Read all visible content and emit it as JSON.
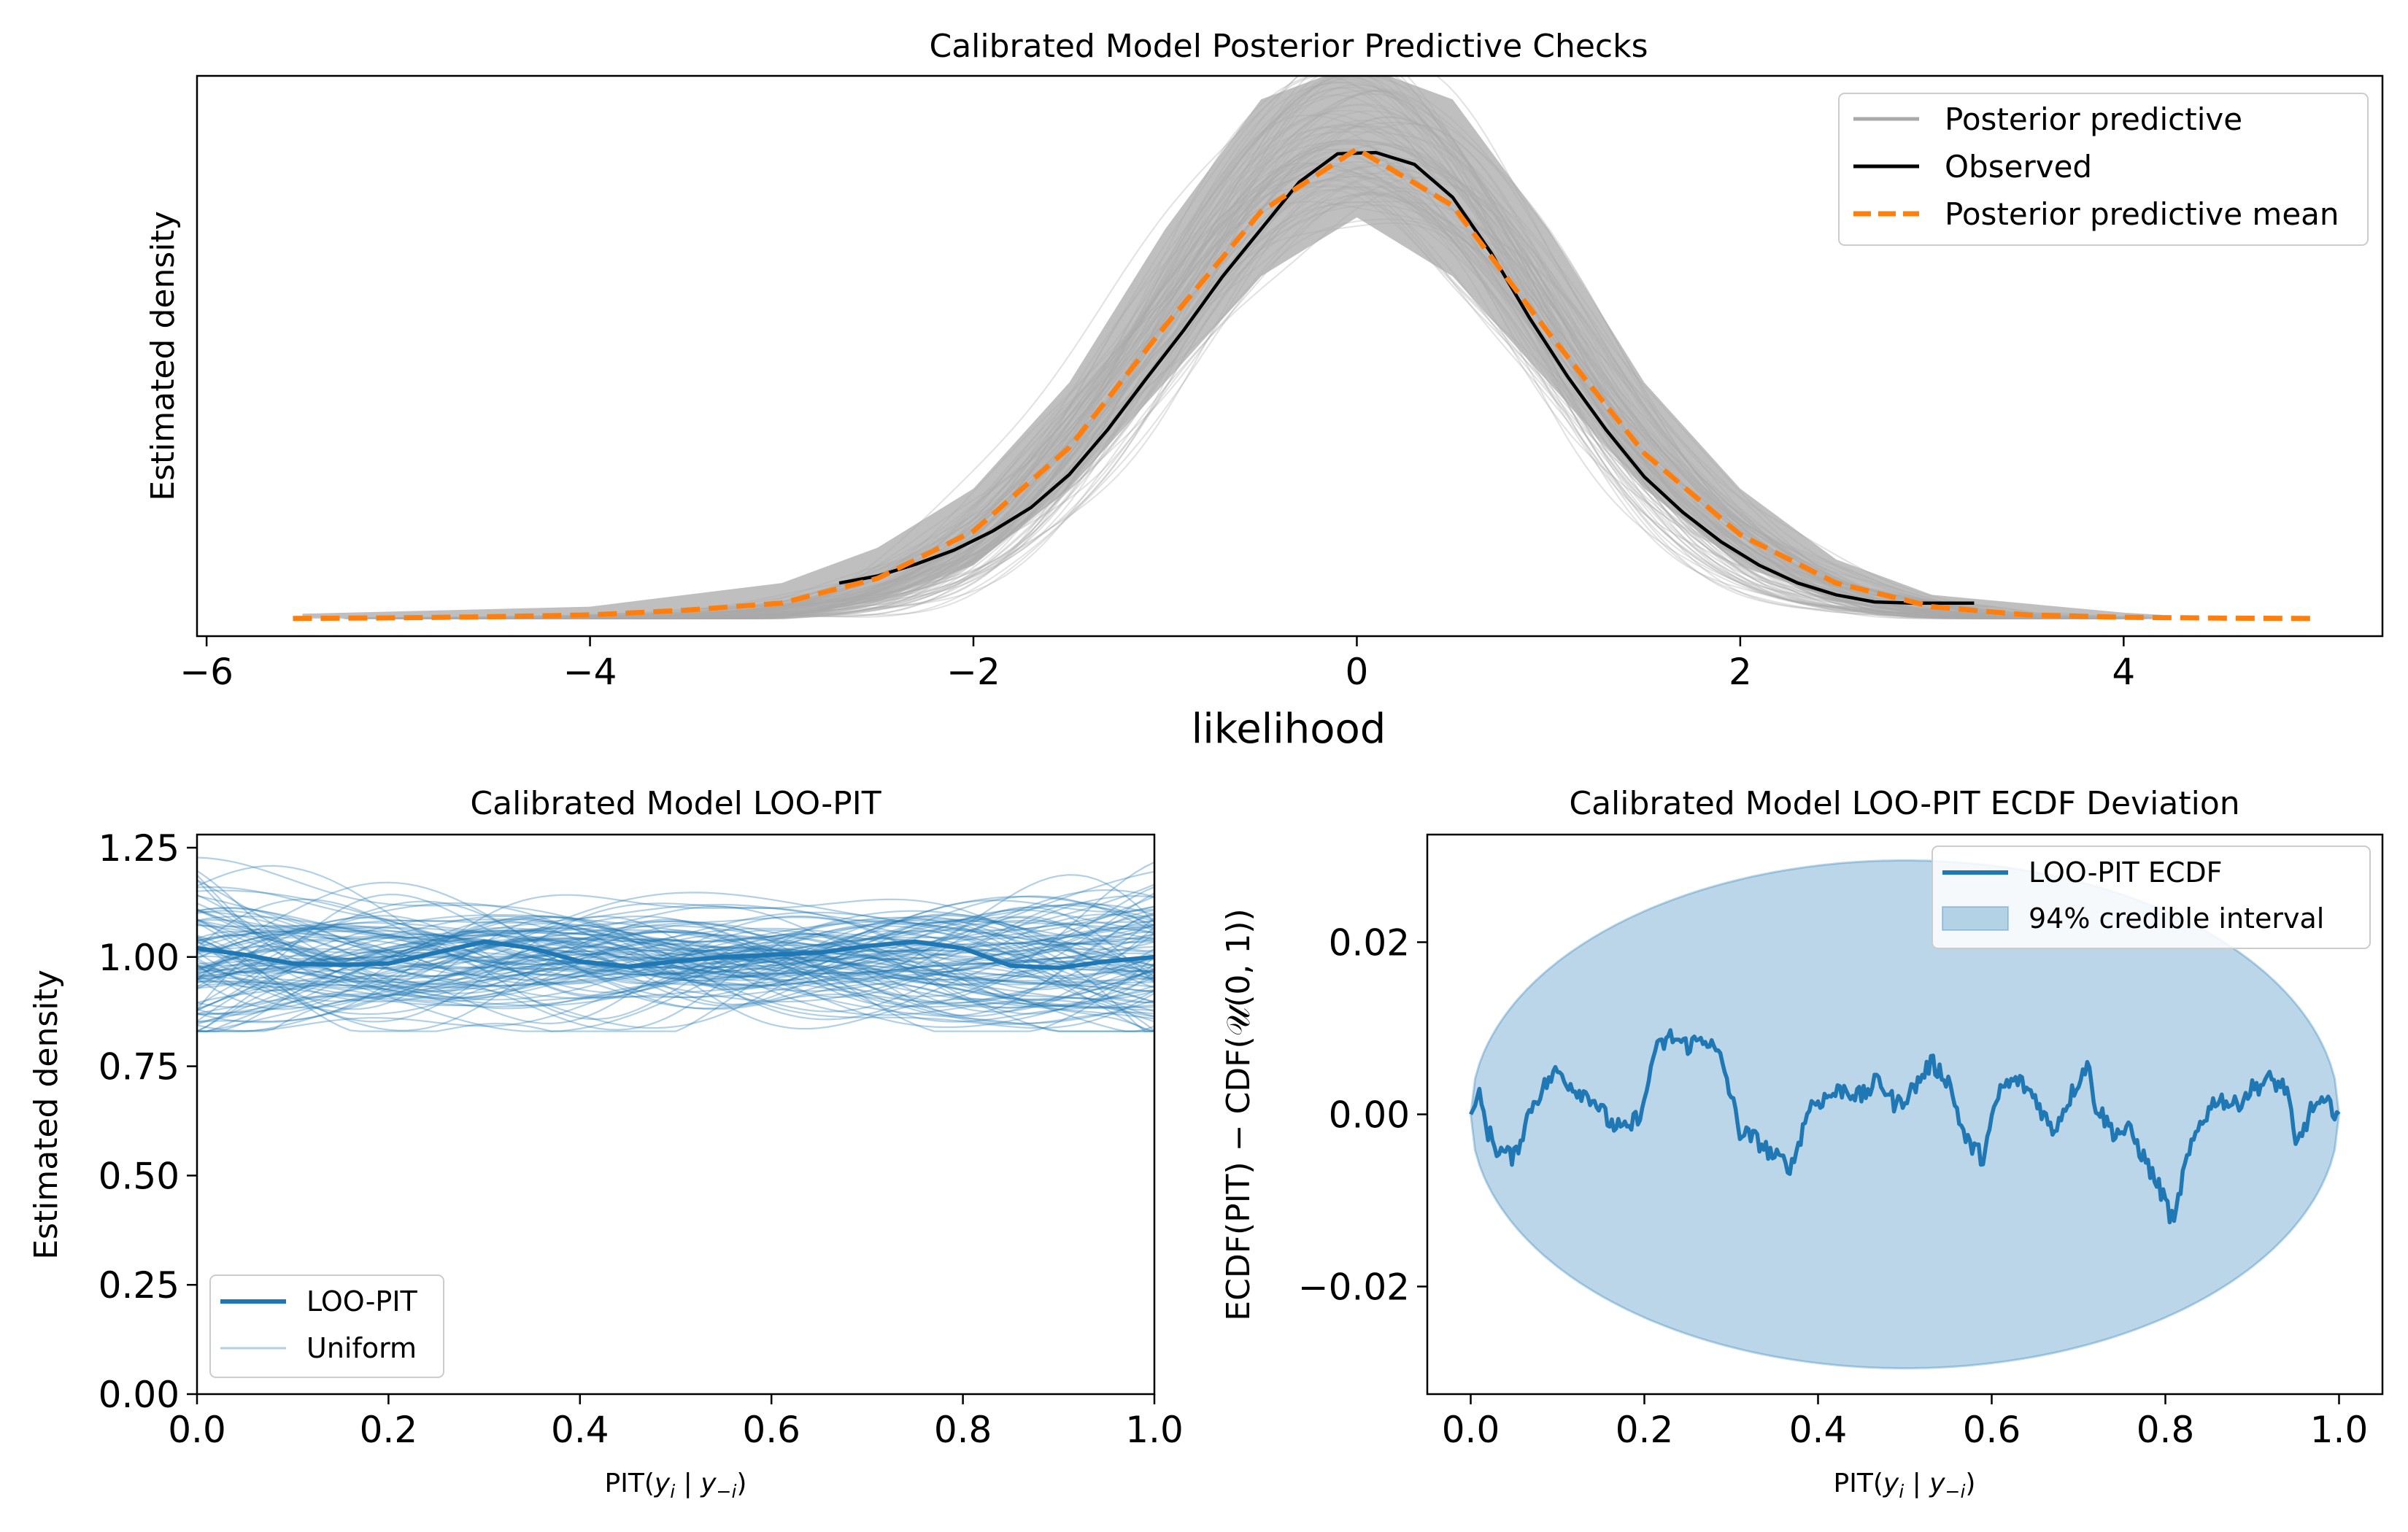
{
  "chart_data": [
    {
      "type": "line",
      "title": "Calibrated Model Posterior Predictive Checks",
      "xlabel": "likelihood",
      "ylabel": "Estimated density",
      "xlim": [
        -6.05,
        5.35
      ],
      "ylim": [
        -0.015,
        0.46
      ],
      "xticks": [
        -6,
        -4,
        -2,
        0,
        2,
        4
      ],
      "xtick_labels": [
        "−6",
        "−4",
        "−2",
        "0",
        "2",
        "4"
      ],
      "show_yticks": false,
      "grid": false,
      "legend_position": "top-right",
      "legend": [
        "Posterior predictive",
        "Observed",
        "Posterior predictive mean"
      ],
      "series": [
        {
          "name": "Posterior predictive",
          "note_count": "many overlapping draws",
          "color": "#a9a9a9",
          "envelope_x": [
            -5.5,
            -4.0,
            -3.0,
            -2.5,
            -2.0,
            -1.5,
            -1.0,
            -0.5,
            0.0,
            0.5,
            1.0,
            1.5,
            2.0,
            2.5,
            3.0,
            4.0,
            4.2
          ],
          "envelope_low": [
            0.0,
            0.0,
            0.0,
            0.015,
            0.045,
            0.11,
            0.2,
            0.29,
            0.34,
            0.29,
            0.2,
            0.11,
            0.045,
            0.015,
            0.003,
            0.0,
            0.0
          ],
          "envelope_high": [
            0.004,
            0.01,
            0.03,
            0.06,
            0.11,
            0.2,
            0.33,
            0.44,
            0.47,
            0.44,
            0.33,
            0.2,
            0.11,
            0.05,
            0.02,
            0.005,
            0.003
          ]
        },
        {
          "name": "Observed",
          "color": "#000000",
          "x": [
            -2.7,
            -2.5,
            -2.3,
            -2.1,
            -1.9,
            -1.7,
            -1.5,
            -1.3,
            -1.1,
            -0.9,
            -0.7,
            -0.5,
            -0.3,
            -0.1,
            0.1,
            0.3,
            0.5,
            0.7,
            0.9,
            1.1,
            1.3,
            1.5,
            1.7,
            1.9,
            2.1,
            2.3,
            2.5,
            2.7,
            2.9,
            3.1,
            3.22
          ],
          "y": [
            0.03,
            0.036,
            0.046,
            0.058,
            0.074,
            0.094,
            0.122,
            0.16,
            0.203,
            0.245,
            0.29,
            0.33,
            0.37,
            0.394,
            0.395,
            0.385,
            0.357,
            0.31,
            0.255,
            0.205,
            0.16,
            0.12,
            0.09,
            0.065,
            0.045,
            0.03,
            0.02,
            0.014,
            0.013,
            0.013,
            0.013
          ]
        },
        {
          "name": "Posterior predictive mean",
          "color": "#ff7f0e",
          "x": [
            -5.55,
            -5.0,
            -4.5,
            -4.0,
            -3.5,
            -3.0,
            -2.5,
            -2.0,
            -1.5,
            -1.0,
            -0.5,
            0.0,
            0.5,
            1.0,
            1.5,
            2.0,
            2.5,
            3.0,
            3.5,
            4.0,
            4.5,
            4.98
          ],
          "y": [
            0.0,
            0.0005,
            0.0015,
            0.003,
            0.007,
            0.013,
            0.034,
            0.074,
            0.145,
            0.248,
            0.345,
            0.398,
            0.35,
            0.242,
            0.14,
            0.071,
            0.03,
            0.01,
            0.003,
            0.001,
            0.0003,
            0.0
          ]
        }
      ]
    },
    {
      "type": "line",
      "title": "Calibrated Model LOO-PIT",
      "xlabel": "PIT(",
      "xlabel_var": "y",
      "xlabel_sub_i": "i",
      "xlabel_mid": " | ",
      "xlabel_sub_minus_i": "−i",
      "xlabel_end": ")",
      "ylabel": "Estimated density",
      "xlim": [
        0.0,
        1.0
      ],
      "ylim": [
        0.0,
        1.28
      ],
      "xticks": [
        0.0,
        0.2,
        0.4,
        0.6,
        0.8,
        1.0
      ],
      "xtick_labels": [
        "0.0",
        "0.2",
        "0.4",
        "0.6",
        "0.8",
        "1.0"
      ],
      "yticks": [
        0.0,
        0.25,
        0.5,
        0.75,
        1.0,
        1.25
      ],
      "ytick_labels": [
        "0.00",
        "0.25",
        "0.50",
        "0.75",
        "1.00",
        "1.25"
      ],
      "grid": false,
      "legend_position": "bottom-left",
      "legend": [
        "LOO-PIT",
        "Uniform"
      ],
      "series": [
        {
          "name": "LOO-PIT",
          "color": "#1f77b4",
          "x": [
            0.0,
            0.05,
            0.1,
            0.15,
            0.2,
            0.25,
            0.3,
            0.35,
            0.4,
            0.45,
            0.5,
            0.55,
            0.6,
            0.65,
            0.7,
            0.75,
            0.8,
            0.85,
            0.9,
            0.95,
            1.0
          ],
          "y": [
            1.02,
            1.005,
            0.985,
            0.982,
            0.985,
            1.01,
            1.035,
            1.02,
            0.99,
            0.978,
            0.99,
            1.0,
            1.005,
            1.01,
            1.025,
            1.035,
            1.02,
            0.98,
            0.975,
            0.99,
            1.0
          ]
        },
        {
          "name": "Uniform",
          "color": "#1f77b4",
          "opacity": 0.35,
          "band_low": 0.83,
          "band_high": 1.26
        }
      ]
    },
    {
      "type": "line",
      "title": "Calibrated Model LOO-PIT ECDF Deviation",
      "xlabel": "PIT(",
      "xlabel_var": "y",
      "xlabel_sub_i": "i",
      "xlabel_mid": " | ",
      "xlabel_sub_minus_i": "−i",
      "xlabel_end": ")",
      "ylabel": "ECDF(PIT) − CDF(𝒰(0, 1))",
      "xlim": [
        -0.05,
        1.05
      ],
      "ylim": [
        -0.0325,
        0.0325
      ],
      "xticks": [
        0.0,
        0.2,
        0.4,
        0.6,
        0.8,
        1.0
      ],
      "xtick_labels": [
        "0.0",
        "0.2",
        "0.4",
        "0.6",
        "0.8",
        "1.0"
      ],
      "yticks": [
        -0.02,
        0.0,
        0.02
      ],
      "ytick_labels": [
        "−0.02",
        "0.00",
        "0.02"
      ],
      "grid": false,
      "legend_position": "top-right",
      "legend": [
        "LOO-PIT ECDF",
        "94% credible interval"
      ],
      "series": [
        {
          "name": "LOO-PIT ECDF",
          "color": "#1f77b4",
          "x": [
            0.0,
            0.01,
            0.02,
            0.03,
            0.05,
            0.07,
            0.09,
            0.1,
            0.12,
            0.14,
            0.16,
            0.18,
            0.2,
            0.21,
            0.23,
            0.25,
            0.27,
            0.29,
            0.31,
            0.33,
            0.35,
            0.37,
            0.39,
            0.41,
            0.43,
            0.45,
            0.47,
            0.49,
            0.51,
            0.53,
            0.55,
            0.57,
            0.59,
            0.61,
            0.63,
            0.65,
            0.67,
            0.69,
            0.71,
            0.72,
            0.74,
            0.76,
            0.78,
            0.8,
            0.81,
            0.82,
            0.84,
            0.86,
            0.88,
            0.9,
            0.92,
            0.94,
            0.95,
            0.97,
            0.99,
            1.0
          ],
          "y": [
            0.0,
            0.002,
            -0.002,
            -0.004,
            -0.005,
            0.001,
            0.004,
            0.005,
            0.003,
            0.002,
            -0.001,
            -0.002,
            0.001,
            0.007,
            0.009,
            0.008,
            0.009,
            0.006,
            -0.002,
            -0.003,
            -0.005,
            -0.006,
            0.001,
            0.002,
            0.003,
            0.002,
            0.004,
            0.001,
            0.003,
            0.006,
            0.004,
            -0.003,
            -0.005,
            0.003,
            0.004,
            0.002,
            -0.002,
            0.002,
            0.006,
            0.001,
            -0.002,
            -0.002,
            -0.006,
            -0.01,
            -0.013,
            -0.007,
            -0.001,
            0.002,
            0.001,
            0.003,
            0.004,
            0.003,
            -0.004,
            0.001,
            0.001,
            0.0
          ]
        },
        {
          "name": "94% credible interval",
          "color": "#1f77b4",
          "opacity": 0.3,
          "envelope_x_center": 0.5,
          "envelope_half_height": 0.0295
        }
      ]
    }
  ]
}
